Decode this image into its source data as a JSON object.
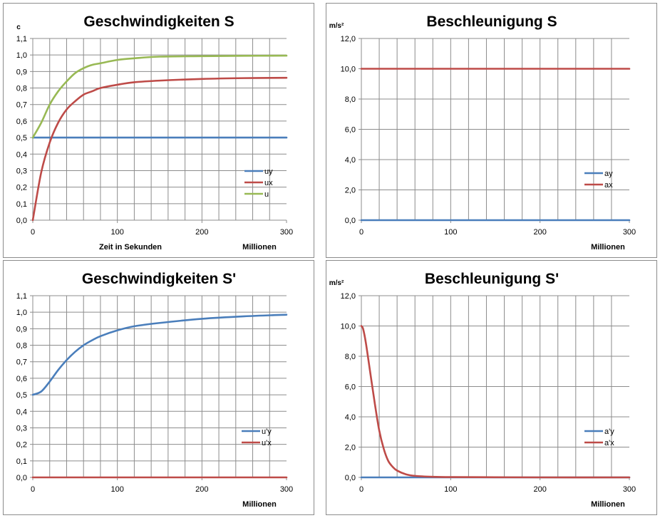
{
  "chart_data": [
    {
      "type": "line",
      "title": "Geschwindigkeiten S",
      "ylabel": "c",
      "xlabel": "Zeit in Sekunden",
      "x_unit_label": "Millionen",
      "ylim": [
        0,
        1.1
      ],
      "y_ticks": [
        "0,0",
        "0,1",
        "0,2",
        "0,3",
        "0,4",
        "0,5",
        "0,6",
        "0,7",
        "0,8",
        "0,9",
        "1,0",
        "1,1"
      ],
      "xlim": [
        0,
        300
      ],
      "x_ticks": [
        "0",
        "100",
        "200",
        "300"
      ],
      "grid": true,
      "legend_position": "bottom-right",
      "x": [
        0,
        10,
        20,
        30,
        40,
        50,
        60,
        70,
        80,
        100,
        120,
        150,
        200,
        250,
        300
      ],
      "series": [
        {
          "name": "uy",
          "color": "#4a7ebb",
          "values": [
            0.5,
            0.5,
            0.5,
            0.5,
            0.5,
            0.5,
            0.5,
            0.5,
            0.5,
            0.5,
            0.5,
            0.5,
            0.5,
            0.5,
            0.5
          ]
        },
        {
          "name": "ux",
          "color": "#be4b48",
          "values": [
            0,
            0.29,
            0.47,
            0.59,
            0.67,
            0.72,
            0.76,
            0.78,
            0.8,
            0.82,
            0.835,
            0.845,
            0.855,
            0.86,
            0.862
          ]
        },
        {
          "name": "u",
          "color": "#98b954",
          "values": [
            0.5,
            0.59,
            0.7,
            0.78,
            0.84,
            0.89,
            0.92,
            0.94,
            0.95,
            0.97,
            0.98,
            0.99,
            0.993,
            0.995,
            0.996
          ]
        }
      ]
    },
    {
      "type": "line",
      "title": "Beschleunigung S",
      "ylabel": "m/s²",
      "x_unit_label": "Millionen",
      "ylim": [
        0,
        12
      ],
      "y_ticks": [
        "0,0",
        "2,0",
        "4,0",
        "6,0",
        "8,0",
        "10,0",
        "12,0"
      ],
      "xlim": [
        0,
        300
      ],
      "x_ticks": [
        "0",
        "100",
        "200",
        "300"
      ],
      "grid": true,
      "legend_position": "bottom-right",
      "x": [
        0,
        300
      ],
      "series": [
        {
          "name": "ay",
          "color": "#4a7ebb",
          "values": [
            0,
            0
          ]
        },
        {
          "name": "ax",
          "color": "#be4b48",
          "values": [
            10,
            10
          ]
        }
      ]
    },
    {
      "type": "line",
      "title": "Geschwindigkeiten S'",
      "x_unit_label": "Millionen",
      "ylim": [
        0,
        1.1
      ],
      "y_ticks": [
        "0,0",
        "0,1",
        "0,2",
        "0,3",
        "0,4",
        "0,5",
        "0,6",
        "0,7",
        "0,8",
        "0,9",
        "1,0",
        "1,1"
      ],
      "xlim": [
        0,
        300
      ],
      "x_ticks": [
        "0",
        "100",
        "200",
        "300"
      ],
      "grid": true,
      "legend_position": "bottom-right",
      "x": [
        0,
        10,
        20,
        30,
        40,
        50,
        60,
        70,
        80,
        100,
        120,
        150,
        200,
        250,
        300
      ],
      "series": [
        {
          "name": "u'y",
          "color": "#4a7ebb",
          "values": [
            0.5,
            0.52,
            0.58,
            0.65,
            0.71,
            0.76,
            0.8,
            0.83,
            0.855,
            0.89,
            0.915,
            0.935,
            0.96,
            0.975,
            0.985
          ]
        },
        {
          "name": "u'x",
          "color": "#be4b48",
          "values": [
            0,
            0,
            0,
            0,
            0,
            0,
            0,
            0,
            0,
            0,
            0,
            0,
            0,
            0,
            0
          ]
        }
      ]
    },
    {
      "type": "line",
      "title": "Beschleunigung S'",
      "ylabel": "m/s²",
      "x_unit_label": "Millionen",
      "ylim": [
        0,
        12
      ],
      "y_ticks": [
        "0,0",
        "2,0",
        "4,0",
        "6,0",
        "8,0",
        "10,0",
        "12,0"
      ],
      "xlim": [
        0,
        300
      ],
      "x_ticks": [
        "0",
        "100",
        "200",
        "300"
      ],
      "grid": true,
      "legend_position": "bottom-right",
      "x": [
        0,
        2,
        5,
        10,
        15,
        20,
        25,
        30,
        35,
        40,
        50,
        60,
        80,
        100,
        150,
        200,
        300
      ],
      "series": [
        {
          "name": "a'y",
          "color": "#4a7ebb",
          "values": [
            0,
            0,
            0,
            0,
            0,
            0,
            0,
            0,
            0,
            0,
            0,
            0,
            0,
            0,
            0,
            0,
            0
          ]
        },
        {
          "name": "a'x",
          "color": "#be4b48",
          "values": [
            10,
            9.8,
            8.9,
            6.9,
            4.9,
            3.1,
            1.9,
            1.1,
            0.7,
            0.45,
            0.2,
            0.1,
            0.04,
            0.02,
            0.01,
            0,
            0
          ]
        }
      ]
    }
  ]
}
